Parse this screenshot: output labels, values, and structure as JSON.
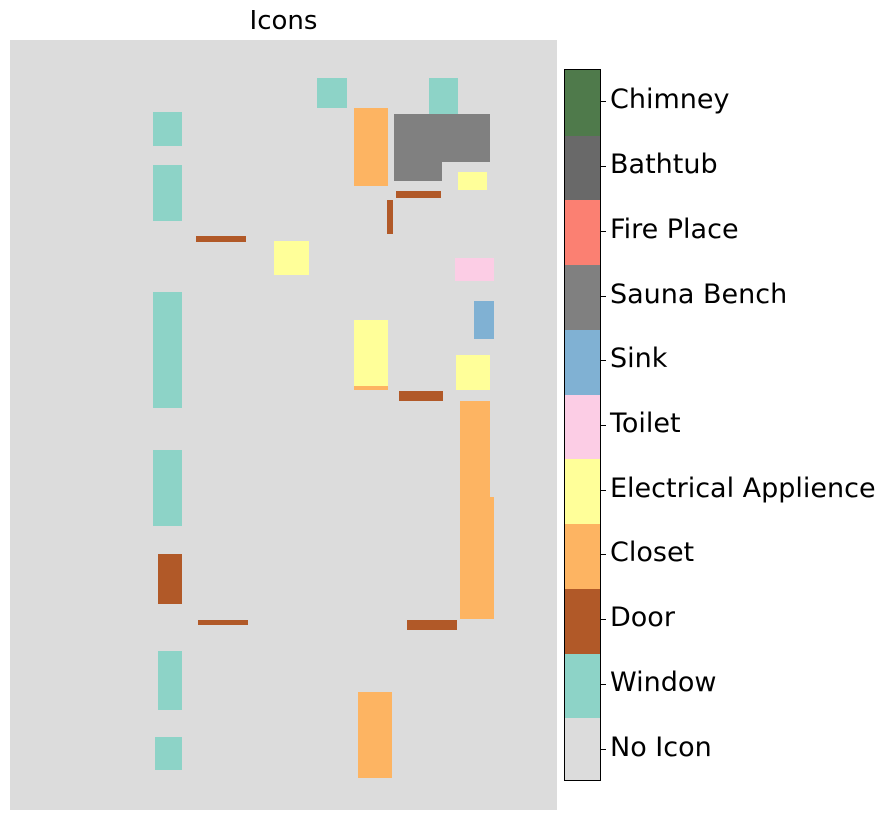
{
  "title": "Icons",
  "legend": {
    "categories": [
      {
        "label": "No Icon",
        "color": "#dcdcdc"
      },
      {
        "label": "Window",
        "color": "#8dd3c7"
      },
      {
        "label": "Door",
        "color": "#b15928"
      },
      {
        "label": "Closet",
        "color": "#fdb462"
      },
      {
        "label": "Electrical Applience",
        "color": "#ffff99"
      },
      {
        "label": "Toilet",
        "color": "#fccde5"
      },
      {
        "label": "Sink",
        "color": "#80b1d3"
      },
      {
        "label": "Sauna Bench",
        "color": "#808080"
      },
      {
        "label": "Fire Place",
        "color": "#fb8072"
      },
      {
        "label": "Bathtub",
        "color": "#696969"
      },
      {
        "label": "Chimney",
        "color": "#4f7a4b"
      }
    ]
  }
}
